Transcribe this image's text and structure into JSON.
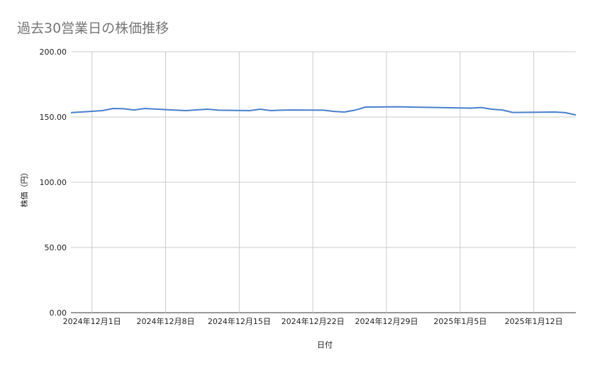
{
  "chart_data": {
    "type": "line",
    "title": "過去30営業日の株価推移",
    "xlabel": "日付",
    "ylabel": "株価（円）",
    "ylim": [
      0,
      200
    ],
    "xlim": [
      "2024-11-29",
      "2025-01-16"
    ],
    "yticks": [
      "0.00",
      "50.00",
      "100.00",
      "150.00",
      "200.00"
    ],
    "xticks": [
      {
        "date": "2024-12-01",
        "label": "2024年12月1日"
      },
      {
        "date": "2024-12-08",
        "label": "2024年12月8日"
      },
      {
        "date": "2024-12-15",
        "label": "2024年12月15日"
      },
      {
        "date": "2024-12-22",
        "label": "2024年12月22日"
      },
      {
        "date": "2024-12-29",
        "label": "2024年12月29日"
      },
      {
        "date": "2025-01-05",
        "label": "2025年1月5日"
      },
      {
        "date": "2025-01-12",
        "label": "2025年1月12日"
      }
    ],
    "grid": true,
    "line_color": "#4a7fcb",
    "series": [
      {
        "x": [
          "2024-11-29",
          "2024-12-02",
          "2024-12-03",
          "2024-12-04",
          "2024-12-05",
          "2024-12-06",
          "2024-12-09",
          "2024-12-10",
          "2024-12-11",
          "2024-12-12",
          "2024-12-13",
          "2024-12-16",
          "2024-12-17",
          "2024-12-18",
          "2024-12-19",
          "2024-12-20",
          "2024-12-23",
          "2024-12-24",
          "2024-12-25",
          "2024-12-26",
          "2024-12-27",
          "2024-12-30",
          "2025-01-06",
          "2025-01-07",
          "2025-01-08",
          "2025-01-09",
          "2025-01-10",
          "2025-01-14",
          "2025-01-15",
          "2025-01-16"
        ],
        "values": [
          153.3,
          154.9,
          156.5,
          156.3,
          155.4,
          156.5,
          155.2,
          154.9,
          155.5,
          156.0,
          155.2,
          154.9,
          156.0,
          154.9,
          155.2,
          155.4,
          155.2,
          154.3,
          153.8,
          155.2,
          157.6,
          157.8,
          156.8,
          157.3,
          156.0,
          155.4,
          153.5,
          153.8,
          153.3,
          151.6
        ]
      }
    ]
  }
}
